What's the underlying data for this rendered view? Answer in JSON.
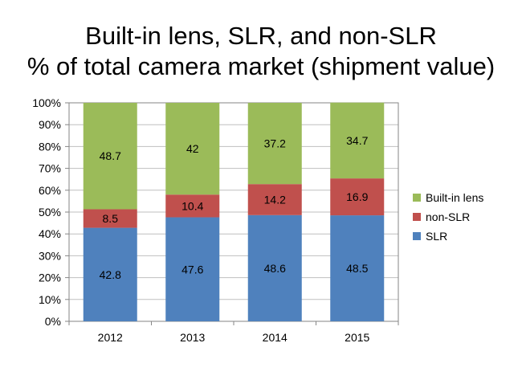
{
  "chart_data": {
    "type": "bar",
    "stacked": true,
    "title_line1": "Built-in lens, SLR, and non-SLR",
    "title_line2": "% of  total camera market (shipment value)",
    "categories": [
      "2012",
      "2013",
      "2014",
      "2015"
    ],
    "series": [
      {
        "name": "SLR",
        "color": "#4f81bd",
        "values": [
          42.8,
          47.6,
          48.6,
          48.5
        ]
      },
      {
        "name": "non-SLR",
        "color": "#c0504d",
        "values": [
          8.5,
          10.4,
          14.2,
          16.9
        ]
      },
      {
        "name": "Built-in lens",
        "color": "#9bbb59",
        "values": [
          48.7,
          42,
          37.2,
          34.7
        ]
      }
    ],
    "value_labels": [
      [
        "42.8",
        "47.6",
        "48.6",
        "48.5"
      ],
      [
        "8.5",
        "10.4",
        "14.2",
        "16.9"
      ],
      [
        "48.7",
        "42",
        "37.2",
        "34.7"
      ]
    ],
    "y_ticks": [
      "0%",
      "10%",
      "20%",
      "30%",
      "40%",
      "50%",
      "60%",
      "70%",
      "80%",
      "90%",
      "100%"
    ],
    "ylim": [
      0,
      100
    ],
    "legend_position": "right",
    "legend_order": [
      "Built-in lens",
      "non-SLR",
      "SLR"
    ],
    "grid": true
  }
}
